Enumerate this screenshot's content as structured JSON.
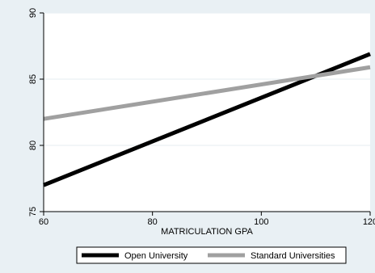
{
  "chart_data": {
    "type": "line",
    "title": "",
    "xlabel": "MATRICULATION GPA",
    "ylabel": "",
    "xlim": [
      60,
      120
    ],
    "ylim": [
      75,
      90
    ],
    "xticks": [
      60,
      80,
      100,
      120
    ],
    "yticks": [
      75,
      80,
      85,
      90
    ],
    "grid": true,
    "legend_position": "bottom",
    "series": [
      {
        "name": "Open University",
        "color": "#000000",
        "x": [
          60,
          120
        ],
        "y": [
          77.0,
          86.9
        ]
      },
      {
        "name": "Standard Universities",
        "color": "#a0a0a0",
        "x": [
          60,
          120
        ],
        "y": [
          82.0,
          85.9
        ]
      }
    ],
    "background_color": "#e9f0f4",
    "plot_background_color": "#ffffff",
    "gridline_color": "#e9f0f4"
  }
}
